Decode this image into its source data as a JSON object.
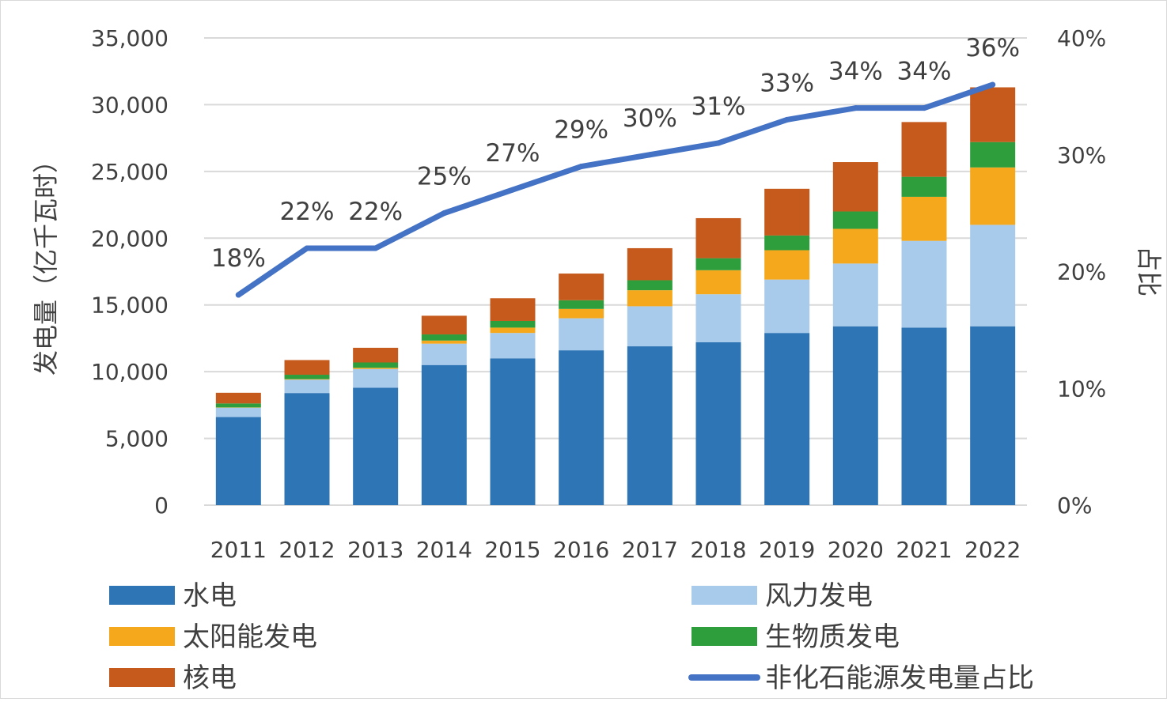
{
  "chart_data": {
    "type": "bar",
    "stacked": true,
    "categories": [
      "2011",
      "2012",
      "2013",
      "2014",
      "2015",
      "2016",
      "2017",
      "2018",
      "2019",
      "2020",
      "2021",
      "2022"
    ],
    "series": [
      {
        "name": "水电",
        "color": "#2E75B6",
        "values": [
          6600,
          8400,
          8800,
          10500,
          11000,
          11600,
          11900,
          12200,
          12900,
          13400,
          13300,
          13400
        ]
      },
      {
        "name": "风力发电",
        "color": "#A9CBEB",
        "values": [
          700,
          1000,
          1400,
          1600,
          1900,
          2400,
          3000,
          3600,
          4000,
          4700,
          6500,
          7600
        ]
      },
      {
        "name": "太阳能发电",
        "color": "#F5A81C",
        "values": [
          20,
          40,
          90,
          230,
          400,
          700,
          1200,
          1800,
          2200,
          2600,
          3300,
          4300
        ]
      },
      {
        "name": "生物质发电",
        "color": "#2E9E3C",
        "values": [
          300,
          330,
          400,
          460,
          500,
          650,
          750,
          900,
          1100,
          1300,
          1500,
          1900
        ]
      },
      {
        "name": "核电",
        "color": "#C55A1C",
        "values": [
          800,
          1100,
          1100,
          1400,
          1700,
          2000,
          2400,
          3000,
          3500,
          3700,
          4100,
          4100
        ]
      }
    ],
    "line_series": {
      "name": "非化石能源发电量占比",
      "color": "#4472C4",
      "values": [
        18,
        22,
        22,
        25,
        27,
        29,
        30,
        31,
        33,
        34,
        34,
        36
      ]
    },
    "line_labels": [
      "18%",
      "22%",
      "22%",
      "25%",
      "27%",
      "29%",
      "30%",
      "31%",
      "33%",
      "34%",
      "34%",
      "36%"
    ],
    "ylabel": "发电量（亿千瓦时）",
    "y2label": "占比",
    "ylim": [
      0,
      35000
    ],
    "y2lim": [
      0,
      40
    ],
    "yticks": [
      "0",
      "5,000",
      "10,000",
      "15,000",
      "20,000",
      "25,000",
      "30,000",
      "35,000"
    ],
    "y2ticks": [
      "0%",
      "10%",
      "20%",
      "30%",
      "40%"
    ],
    "grid": true,
    "legend_position": "bottom"
  }
}
